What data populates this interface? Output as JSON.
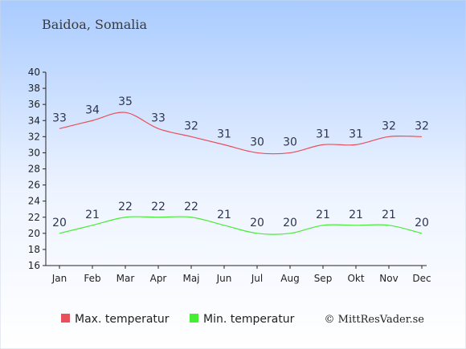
{
  "chart_data": {
    "type": "line",
    "title": "Baidoa, Somalia",
    "categories": [
      "Jan",
      "Feb",
      "Mar",
      "Apr",
      "Maj",
      "Jun",
      "Jul",
      "Aug",
      "Sep",
      "Okt",
      "Nov",
      "Dec"
    ],
    "series": [
      {
        "name": "Max. temperatur",
        "color": "#e8505b",
        "values": [
          33,
          34,
          35,
          33,
          32,
          31,
          30,
          30,
          31,
          31,
          32,
          32
        ]
      },
      {
        "name": "Min. temperatur",
        "color": "#44ee33",
        "values": [
          20,
          21,
          22,
          22,
          22,
          21,
          20,
          20,
          21,
          21,
          21,
          20
        ]
      }
    ],
    "ylim": [
      16,
      40
    ],
    "yticks": [
      16,
      18,
      20,
      22,
      24,
      26,
      28,
      30,
      32,
      34,
      36,
      38,
      40
    ],
    "legend_position": "bottom",
    "grid": false
  },
  "credit": "© MittResVader.se"
}
